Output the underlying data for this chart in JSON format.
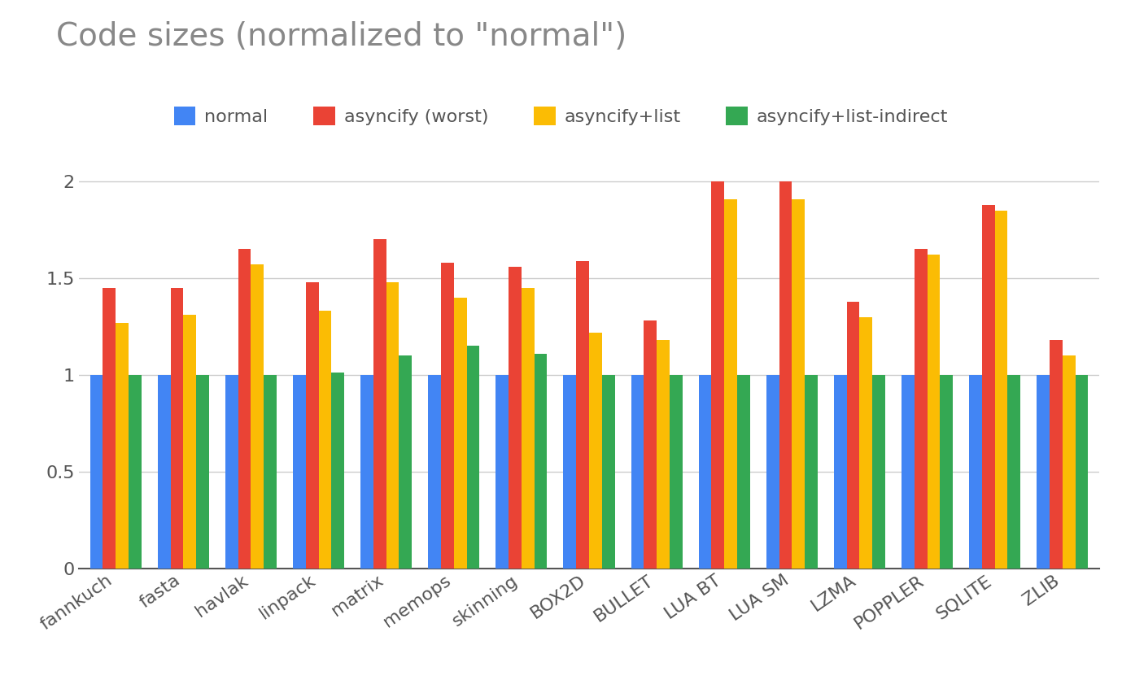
{
  "title": "Code sizes (normalized to \"normal\")",
  "categories": [
    "fannkuch",
    "fasta",
    "havlak",
    "linpack",
    "matrix",
    "memops",
    "skinning",
    "BOX2D",
    "BULLET",
    "LUA BT",
    "LUA SM",
    "LZMA",
    "POPPLER",
    "SQLITE",
    "ZLIB"
  ],
  "series": {
    "normal": [
      1.0,
      1.0,
      1.0,
      1.0,
      1.0,
      1.0,
      1.0,
      1.0,
      1.0,
      1.0,
      1.0,
      1.0,
      1.0,
      1.0,
      1.0
    ],
    "asyncify_worst": [
      1.45,
      1.45,
      1.65,
      1.48,
      1.7,
      1.58,
      1.56,
      1.59,
      1.28,
      2.0,
      2.0,
      1.38,
      1.65,
      1.88,
      1.18
    ],
    "asyncify_list": [
      1.27,
      1.31,
      1.57,
      1.33,
      1.48,
      1.4,
      1.45,
      1.22,
      1.18,
      1.91,
      1.91,
      1.3,
      1.62,
      1.85,
      1.1
    ],
    "asyncify_list_indirect": [
      1.0,
      1.0,
      1.0,
      1.01,
      1.1,
      1.15,
      1.11,
      1.0,
      1.0,
      1.0,
      1.0,
      1.0,
      1.0,
      1.0,
      1.0
    ]
  },
  "colors": {
    "normal": "#4285F4",
    "asyncify_worst": "#EA4335",
    "asyncify_list": "#FBBC04",
    "asyncify_list_indirect": "#34A853"
  },
  "legend_labels": [
    "normal",
    "asyncify (worst)",
    "asyncify+list",
    "asyncify+list-indirect"
  ],
  "ylim": [
    0,
    2.15
  ],
  "yticks": [
    0,
    0.5,
    1,
    1.5,
    2
  ],
  "background_color": "#ffffff",
  "title_color": "#888888",
  "title_fontsize": 28,
  "legend_fontsize": 16,
  "tick_fontsize": 16,
  "bar_width": 0.19,
  "grid_color": "#cccccc"
}
